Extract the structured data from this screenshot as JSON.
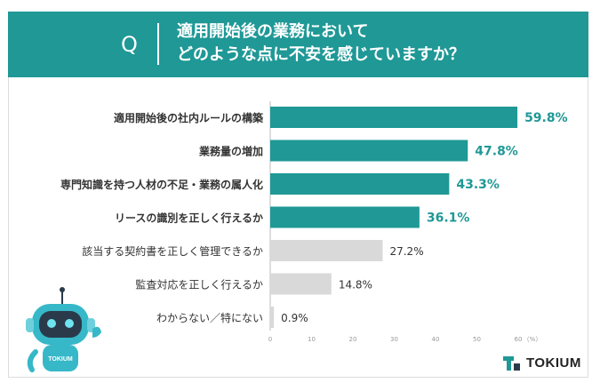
{
  "question": {
    "mark": "Q",
    "title": "適用開始後の業務において\nどのような点に不安を感じていますか？"
  },
  "chart_data": {
    "type": "bar",
    "orientation": "horizontal",
    "categories": [
      "適用開始後の社内ルールの構築",
      "業務量の増加",
      "専門知識を持つ人材の不足・業務の属人化",
      "リースの識別を正しく行えるか",
      "該当する契約書を正しく管理できるか",
      "監査対応を正しく行えるか",
      "わからない／特にない"
    ],
    "values": [
      59.8,
      47.8,
      43.3,
      36.1,
      27.2,
      14.8,
      0.9
    ],
    "value_labels": [
      "59.8%",
      "47.8%",
      "43.3%",
      "36.1%",
      "27.2%",
      "14.8%",
      "0.9%"
    ],
    "highlighted": [
      true,
      true,
      true,
      true,
      false,
      false,
      false
    ],
    "xlim": [
      0,
      60
    ],
    "x_ticks": [
      "0",
      "10",
      "20",
      "30",
      "40",
      "50",
      "60"
    ],
    "x_unit": "（%）",
    "colors": {
      "highlight_bar": "#1f9896",
      "highlight_text": "#1f9896",
      "normal_bar": "#d9d9d9",
      "normal_text": "#333333",
      "axis_line": "#bbbbbb"
    }
  },
  "mascot": {
    "label": "TOKIUM"
  },
  "logo": {
    "text": "TOKIUM"
  }
}
